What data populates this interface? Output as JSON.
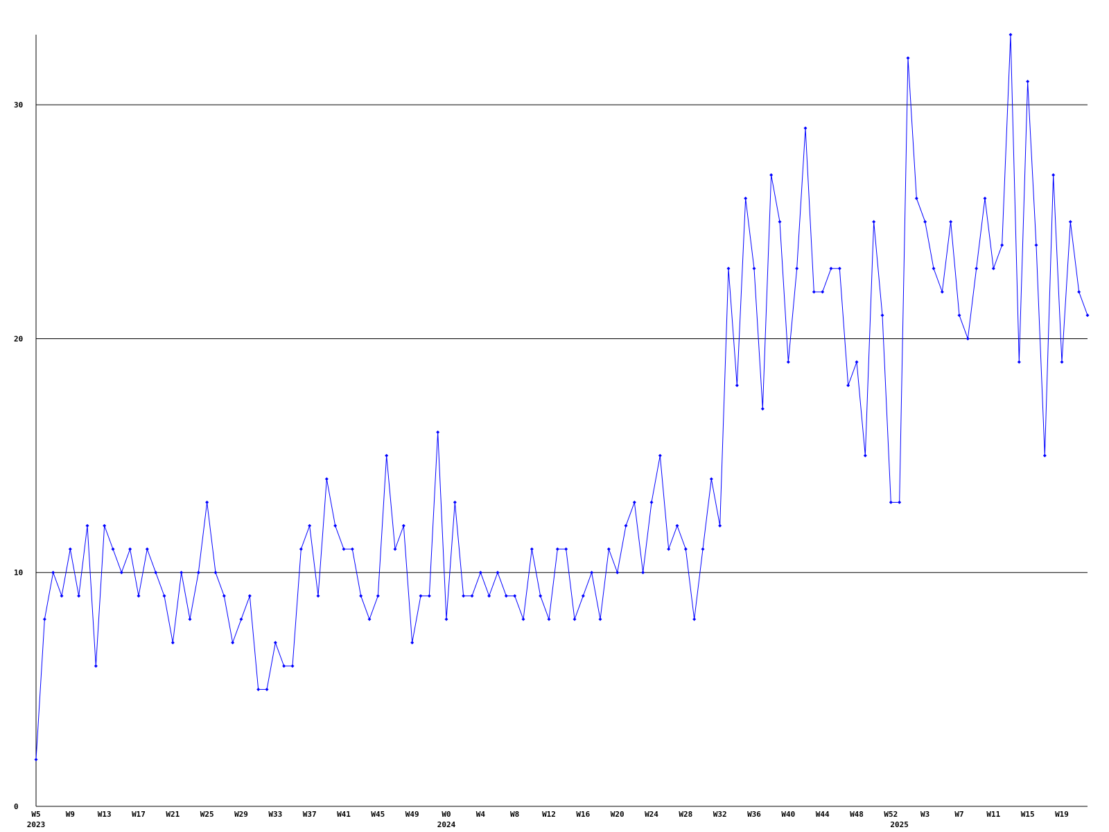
{
  "chart_data": {
    "type": "line",
    "categories": [
      "W5",
      null,
      null,
      null,
      "W9",
      null,
      null,
      null,
      "W13",
      null,
      null,
      null,
      "W17",
      null,
      null,
      null,
      "W21",
      null,
      null,
      null,
      "W25",
      null,
      null,
      null,
      "W29",
      null,
      null,
      null,
      "W33",
      null,
      null,
      null,
      "W37",
      null,
      null,
      null,
      "W41",
      null,
      null,
      null,
      "W45",
      null,
      null,
      null,
      "W49",
      null,
      null,
      null,
      "W0",
      null,
      null,
      null,
      "W4",
      null,
      null,
      null,
      "W8",
      null,
      null,
      null,
      "W12",
      null,
      null,
      null,
      "W16",
      null,
      null,
      null,
      "W20",
      null,
      null,
      null,
      "W24",
      null,
      null,
      null,
      "W28",
      null,
      null,
      null,
      "W32",
      null,
      null,
      null,
      "W36",
      null,
      null,
      null,
      "W40",
      null,
      null,
      null,
      "W44",
      null,
      null,
      null,
      "W48",
      null,
      null,
      null,
      "W52",
      null,
      null,
      null,
      "W3",
      null,
      null,
      null,
      "W7",
      null,
      null,
      null,
      "W11",
      null,
      null,
      null,
      "W15",
      null,
      null,
      null,
      "W19",
      null,
      null,
      null
    ],
    "category_years": [
      "2023",
      null,
      null,
      null,
      null,
      null,
      null,
      null,
      null,
      null,
      null,
      null,
      null,
      null,
      null,
      null,
      null,
      null,
      null,
      null,
      null,
      null,
      null,
      null,
      null,
      null,
      null,
      null,
      null,
      null,
      null,
      null,
      null,
      null,
      null,
      null,
      null,
      null,
      null,
      null,
      null,
      null,
      null,
      null,
      null,
      null,
      null,
      null,
      "2024",
      null,
      null,
      null,
      null,
      null,
      null,
      null,
      null,
      null,
      null,
      null,
      null,
      null,
      null,
      null,
      null,
      null,
      null,
      null,
      null,
      null,
      null,
      null,
      null,
      null,
      null,
      null,
      null,
      null,
      null,
      null,
      null,
      null,
      null,
      null,
      null,
      null,
      null,
      null,
      null,
      null,
      null,
      null,
      null,
      null,
      null,
      null,
      null,
      null,
      null,
      null,
      null,
      "2025",
      null,
      null,
      null,
      null,
      null,
      null,
      null,
      null,
      null,
      null,
      null,
      null,
      null,
      null,
      null,
      null,
      null,
      null,
      null,
      null,
      null,
      null
    ],
    "series": [
      {
        "color": "#0000ff",
        "values": [
          2,
          8,
          10,
          9,
          11,
          9,
          12,
          6,
          12,
          11,
          10,
          11,
          9,
          11,
          10,
          9,
          7,
          10,
          8,
          10,
          13,
          10,
          9,
          7,
          8,
          9,
          5,
          5,
          7,
          6,
          6,
          11,
          12,
          9,
          14,
          12,
          11,
          11,
          9,
          8,
          9,
          15,
          11,
          12,
          7,
          9,
          9,
          16,
          8,
          13,
          9,
          9,
          10,
          9,
          10,
          9,
          9,
          8,
          11,
          9,
          8,
          11,
          11,
          8,
          9,
          10,
          8,
          11,
          10,
          12,
          13,
          10,
          13,
          15,
          11,
          12,
          11,
          8,
          11,
          14,
          12,
          23,
          18,
          26,
          23,
          17,
          27,
          25,
          19,
          23,
          29,
          22,
          22,
          23,
          23,
          18,
          19,
          15,
          25,
          21,
          13,
          13,
          32,
          26,
          25,
          23,
          22,
          25,
          21,
          20,
          23,
          26,
          23,
          24,
          33,
          19,
          31,
          24,
          15,
          27,
          19,
          25,
          22,
          21
        ]
      }
    ],
    "ylim": [
      0,
      33
    ],
    "yticks": [
      0,
      10,
      20,
      30
    ],
    "grid": true
  }
}
